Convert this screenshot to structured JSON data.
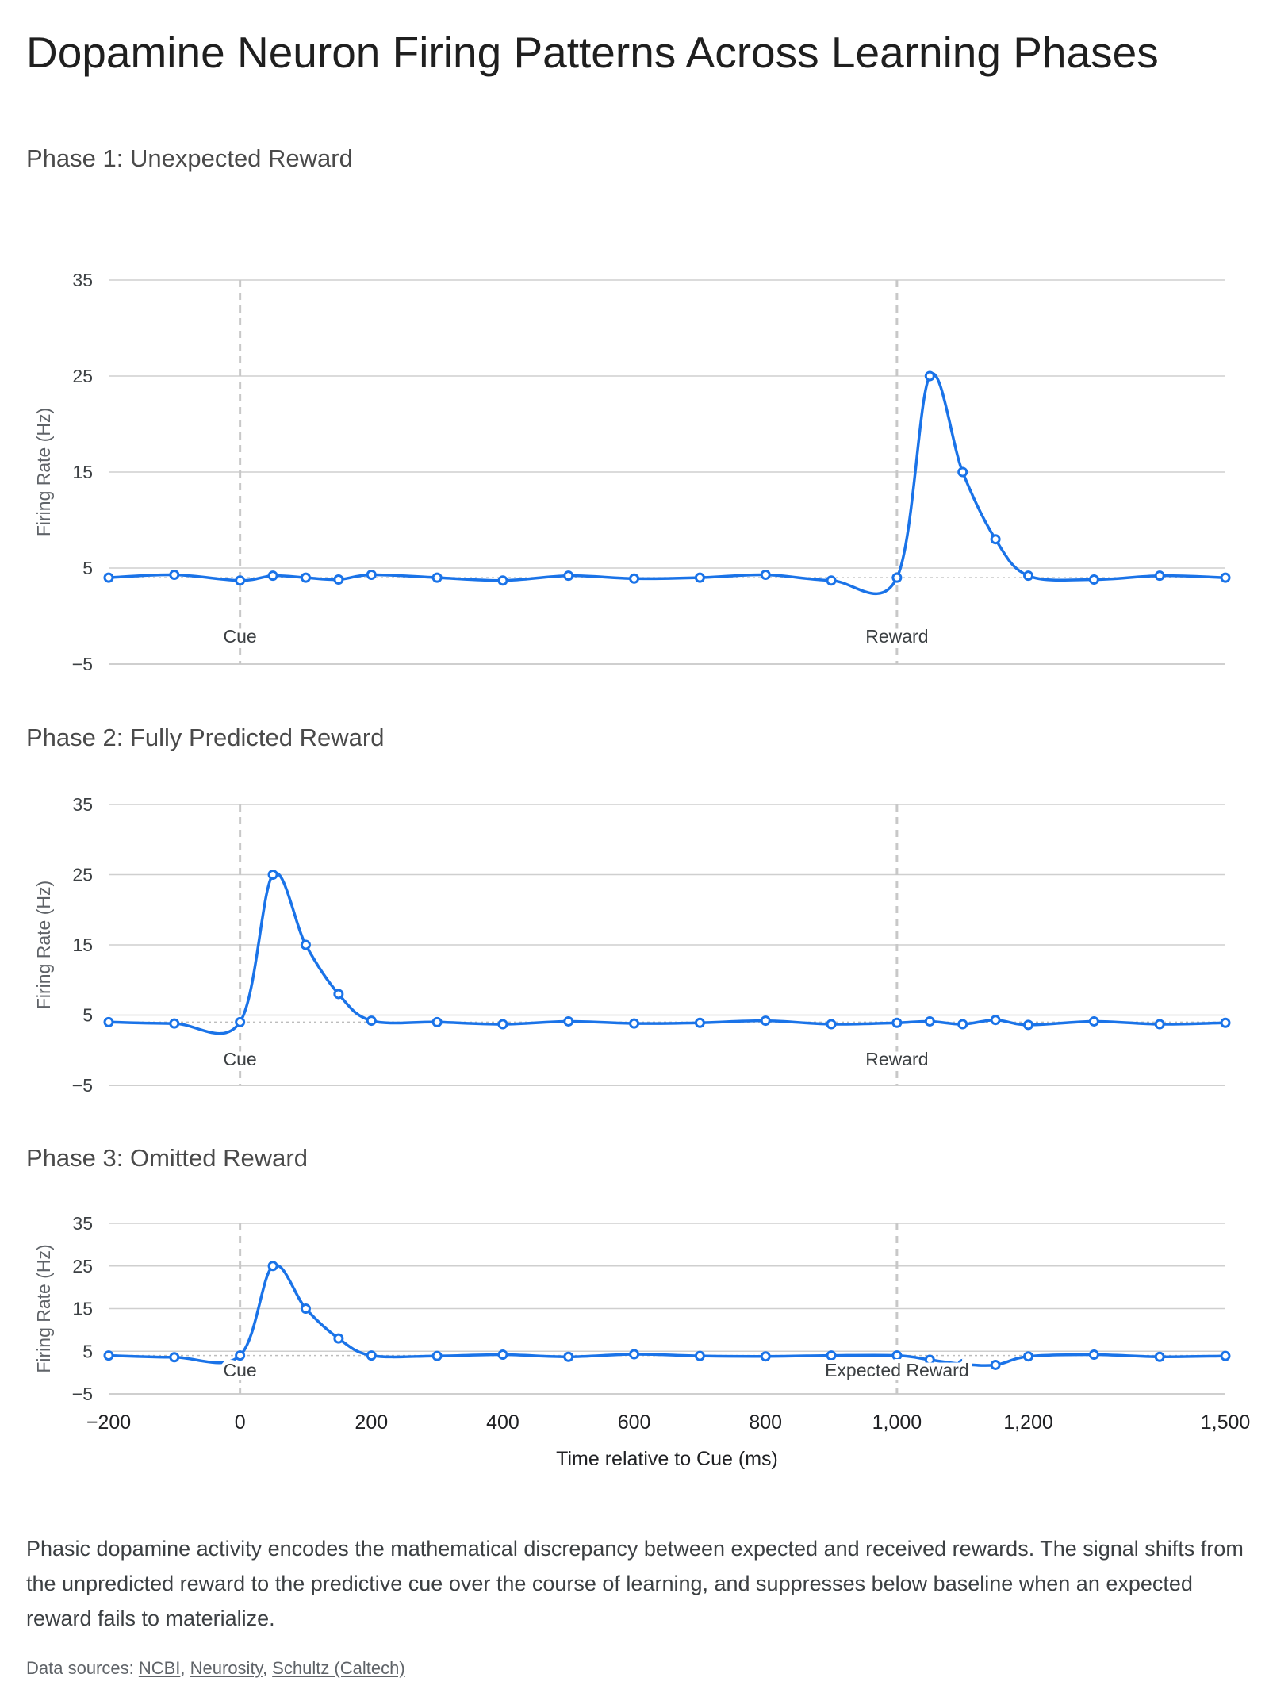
{
  "title": "Dopamine Neuron Firing Patterns Across Learning Phases",
  "caption": "Phasic dopamine activity encodes the mathematical discrepancy between expected and received rewards. The signal shifts from the unpredicted reward to the predictive cue over the course of learning, and suppresses below baseline when an expected reward fails to materialize.",
  "sources": {
    "prefix": "Data sources: ",
    "links": [
      "NCBI",
      "Neurosity",
      "Schultz (Caltech)"
    ],
    "separator": ", "
  },
  "colors": {
    "line": "#1a73e8",
    "grid": "#cfcfcf",
    "marker_line": "#c8c8c8",
    "baseline": "#bdbdbd"
  },
  "chart_data": [
    {
      "type": "line",
      "title": "Phase 1: Unexpected Reward",
      "ylabel": "Firing Rate (Hz)",
      "xlabel": "",
      "ylim": [
        -5,
        35
      ],
      "yticks": [
        -5,
        5,
        15,
        25,
        35
      ],
      "baseline": 4,
      "markers": [
        {
          "x": 0,
          "label": "Cue"
        },
        {
          "x": 1000,
          "label": "Reward"
        }
      ],
      "series": [
        {
          "x": [
            -200,
            -100,
            0,
            50,
            100,
            150,
            200,
            300,
            400,
            500,
            600,
            700,
            800,
            900,
            1000,
            1050,
            1100,
            1150,
            1200,
            1300,
            1400,
            1500
          ],
          "y": [
            4,
            4.3,
            3.7,
            4.2,
            4,
            3.8,
            4.3,
            4,
            3.7,
            4.2,
            3.9,
            4,
            4.3,
            3.7,
            4,
            25,
            15,
            8,
            4.2,
            3.8,
            4.2,
            4
          ]
        }
      ]
    },
    {
      "type": "line",
      "title": "Phase 2: Fully Predicted Reward",
      "ylabel": "Firing Rate (Hz)",
      "xlabel": "",
      "ylim": [
        -5,
        35
      ],
      "yticks": [
        -5,
        5,
        15,
        25,
        35
      ],
      "baseline": 4,
      "markers": [
        {
          "x": 0,
          "label": "Cue"
        },
        {
          "x": 1000,
          "label": "Reward"
        }
      ],
      "series": [
        {
          "x": [
            -200,
            -100,
            0,
            50,
            100,
            150,
            200,
            300,
            400,
            500,
            600,
            700,
            800,
            900,
            1000,
            1050,
            1100,
            1150,
            1200,
            1300,
            1400,
            1500
          ],
          "y": [
            4,
            3.8,
            4,
            25,
            15,
            8,
            4.2,
            4,
            3.7,
            4.1,
            3.8,
            3.9,
            4.2,
            3.7,
            3.9,
            4.1,
            3.7,
            4.3,
            3.6,
            4.1,
            3.7,
            3.9
          ]
        }
      ]
    },
    {
      "type": "line",
      "title": "Phase 3: Omitted Reward",
      "ylabel": "Firing Rate (Hz)",
      "xlabel": "Time relative to Cue (ms)",
      "ylim": [
        -5,
        35
      ],
      "yticks": [
        -5,
        5,
        15,
        25,
        35
      ],
      "xticks": [
        -200,
        0,
        200,
        400,
        600,
        800,
        1000,
        1200,
        1500
      ],
      "xticklabels": [
        "−200",
        "0",
        "200",
        "400",
        "600",
        "800",
        "1,000",
        "1,200",
        "1,500"
      ],
      "baseline": 4,
      "markers": [
        {
          "x": 0,
          "label": "Cue"
        },
        {
          "x": 1000,
          "label": "Expected Reward"
        }
      ],
      "series": [
        {
          "x": [
            -200,
            -100,
            0,
            50,
            100,
            150,
            200,
            300,
            400,
            500,
            600,
            700,
            800,
            900,
            1000,
            1050,
            1100,
            1150,
            1200,
            1300,
            1400,
            1500
          ],
          "y": [
            4,
            3.6,
            4,
            25,
            15,
            8,
            4,
            3.9,
            4.2,
            3.7,
            4.3,
            3.9,
            3.8,
            4,
            4,
            3,
            2,
            1.8,
            3.8,
            4.2,
            3.7,
            3.9
          ]
        }
      ]
    }
  ]
}
